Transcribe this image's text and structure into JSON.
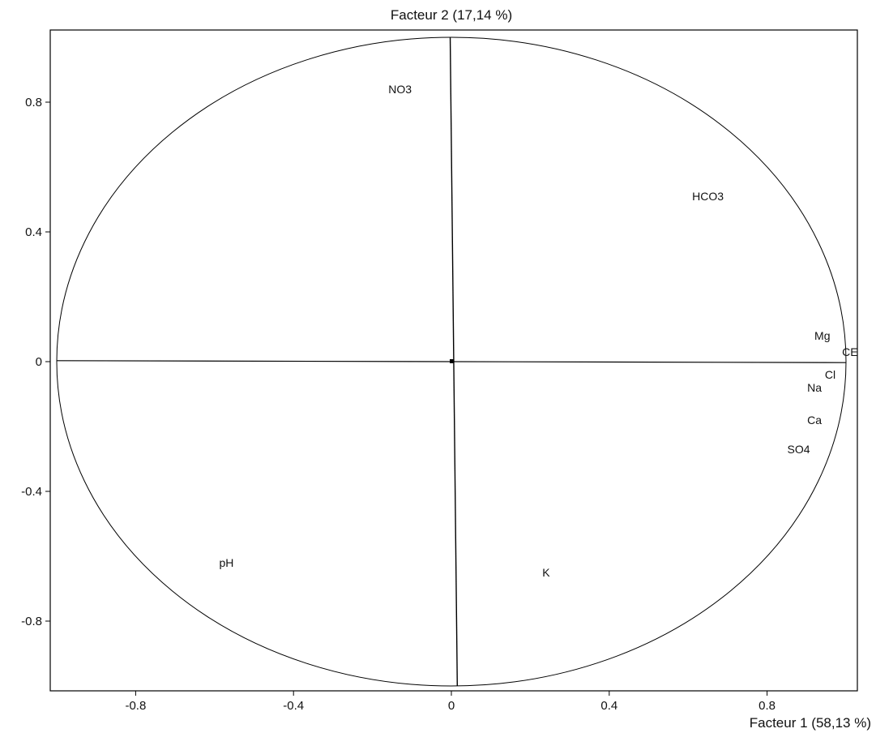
{
  "chart_data": {
    "type": "scatter",
    "title": "Facteur 2 (17,14 %)",
    "xlabel": "Facteur 1 (58,13 %)",
    "ylabel": "",
    "xlim": [
      -1.0,
      1.0
    ],
    "ylim": [
      -1.0,
      1.0
    ],
    "xticks": [
      "-0.8",
      "-0.4",
      "0",
      "0.4",
      "0.8"
    ],
    "yticks": [
      "0.8",
      "0.4",
      "0",
      "-0.4",
      "-0.8"
    ],
    "grid": false,
    "legend": "none",
    "points": [
      {
        "label": "NO3",
        "x": -0.13,
        "y": 0.84
      },
      {
        "label": "HCO3",
        "x": 0.65,
        "y": 0.51
      },
      {
        "label": "Mg",
        "x": 0.94,
        "y": 0.08
      },
      {
        "label": "CE",
        "x": 1.01,
        "y": 0.03
      },
      {
        "label": "Cl",
        "x": 0.96,
        "y": -0.04
      },
      {
        "label": "Na",
        "x": 0.92,
        "y": -0.08
      },
      {
        "label": "Ca",
        "x": 0.92,
        "y": -0.18
      },
      {
        "label": "SO4",
        "x": 0.88,
        "y": -0.27
      },
      {
        "label": "pH",
        "x": -0.57,
        "y": -0.62
      },
      {
        "label": "K",
        "x": 0.24,
        "y": -0.65
      }
    ]
  }
}
